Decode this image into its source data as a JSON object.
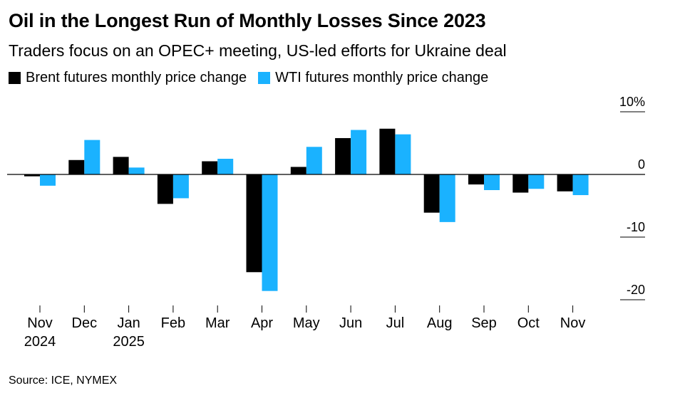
{
  "title": "Oil in the Longest Run of Monthly Losses Since 2023",
  "subtitle": "Traders focus on an OPEC+ meeting, US-led efforts for Ukraine deal",
  "source": "Source: ICE, NYMEX",
  "colors": {
    "brent": "#000000",
    "wti": "#1ab2ff",
    "axis": "#000000"
  },
  "chart_data": {
    "type": "bar",
    "categories": [
      "Nov|2024",
      "Dec",
      "Jan|2025",
      "Feb",
      "Mar",
      "Apr",
      "May",
      "Jun",
      "Jul",
      "Aug",
      "Sep",
      "Oct",
      "Nov"
    ],
    "series": [
      {
        "name": "Brent futures monthly price change",
        "values": [
          -0.3,
          2.3,
          2.8,
          -4.7,
          2.1,
          -15.6,
          1.2,
          5.8,
          7.3,
          -6.1,
          -1.6,
          -2.9,
          -2.7
        ]
      },
      {
        "name": "WTI futures monthly price change",
        "values": [
          -1.8,
          5.5,
          1.1,
          -3.8,
          2.5,
          -18.6,
          4.4,
          7.1,
          6.4,
          -7.6,
          -2.5,
          -2.3,
          -3.3
        ]
      }
    ],
    "yticks": [
      10,
      0,
      -10,
      -20
    ],
    "ytick_labels": [
      "10%",
      "0",
      "-10",
      "-20"
    ],
    "ylim": [
      -20,
      10
    ],
    "legend": "top-left",
    "grid": false
  }
}
